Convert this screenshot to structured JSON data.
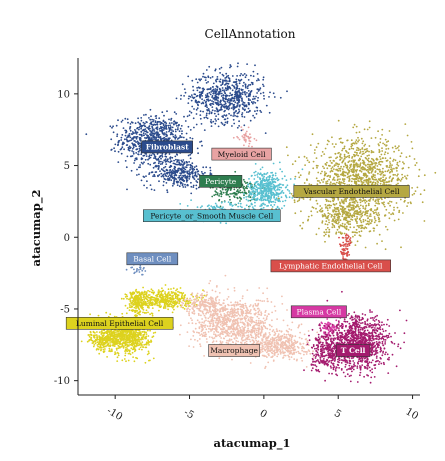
{
  "chart_data": {
    "type": "scatter",
    "title": "CellAnnotation",
    "xlabel": "atacumap_1",
    "ylabel": "atacumap_2",
    "xlim": [
      -12.5,
      10.5
    ],
    "ylim": [
      -11,
      12.5
    ],
    "x_ticks": [
      -10,
      -5,
      0,
      5,
      10
    ],
    "x_tick_labels": [
      "-10",
      "-5",
      "0",
      "5",
      "10"
    ],
    "y_ticks": [
      -10,
      -5,
      0,
      5,
      10
    ],
    "y_tick_labels": [
      "-10",
      "-5",
      "0",
      "5",
      "10"
    ],
    "grid": false,
    "legend": "none",
    "series": [
      {
        "name": "Fibroblast",
        "color": "#2b4b8c",
        "label_at": [
          -6.5,
          6.3
        ],
        "blobs": [
          {
            "c": [
              -7.5,
              6.8
            ],
            "r": [
              2.0,
              1.5
            ],
            "n": 700
          },
          {
            "c": [
              -5.8,
              4.5
            ],
            "r": [
              1.8,
              1.0
            ],
            "n": 350
          },
          {
            "c": [
              -2.5,
              9.8
            ],
            "r": [
              2.3,
              1.6
            ],
            "n": 650
          }
        ]
      },
      {
        "name": "Myeloid Cell",
        "color": "#e8a3a3",
        "label_at": [
          -1.5,
          5.8
        ],
        "blobs": [
          {
            "c": [
              -1.2,
              7.0
            ],
            "r": [
              0.5,
              0.5
            ],
            "n": 40
          }
        ]
      },
      {
        "name": "Pericyte",
        "color": "#2e7d4f",
        "label_at": [
          -2.9,
          3.9
        ],
        "blobs": [
          {
            "c": [
              -2.0,
              3.3
            ],
            "r": [
              1.4,
              0.8
            ],
            "n": 180
          }
        ]
      },
      {
        "name": "Pericyte_or_Smooth Muscle Cell",
        "color": "#58c0d0",
        "label_at": [
          -3.5,
          1.5
        ],
        "blobs": [
          {
            "c": [
              0.2,
              3.3
            ],
            "r": [
              1.2,
              1.2
            ],
            "n": 450
          },
          {
            "c": [
              -3.0,
              1.8
            ],
            "r": [
              2.2,
              0.6
            ],
            "n": 150
          }
        ]
      },
      {
        "name": "Vascular Endothelial Cell",
        "color": "#b5a842",
        "label_at": [
          5.9,
          3.2
        ],
        "blobs": [
          {
            "c": [
              6.5,
              4.0
            ],
            "r": [
              3.0,
              2.5
            ],
            "n": 1200
          },
          {
            "c": [
              5.5,
              1.5
            ],
            "r": [
              2.0,
              1.3
            ],
            "n": 350
          },
          {
            "c": [
              3.0,
              3.0
            ],
            "r": [
              1.0,
              0.4
            ],
            "n": 60
          }
        ]
      },
      {
        "name": "Lymphatic Endothelial Cell",
        "color": "#d94f4b",
        "label_at": [
          4.5,
          -2.0
        ],
        "blobs": [
          {
            "c": [
              5.5,
              -0.8
            ],
            "r": [
              0.4,
              1.0
            ],
            "n": 80
          }
        ]
      },
      {
        "name": "Basal Cell",
        "color": "#6f8fc0",
        "label_at": [
          -7.5,
          -1.5
        ],
        "blobs": [
          {
            "c": [
              -8.5,
              -2.2
            ],
            "r": [
              0.5,
              0.4
            ],
            "n": 25
          }
        ]
      },
      {
        "name": "Luminal Epithelial Cell",
        "color": "#ddd21e",
        "label_at": [
          -9.7,
          -6.0
        ],
        "blobs": [
          {
            "c": [
              -9.2,
              -6.8
            ],
            "r": [
              1.4,
              1.2
            ],
            "n": 800
          },
          {
            "c": [
              -6.8,
              -4.3
            ],
            "r": [
              1.8,
              0.6
            ],
            "n": 400
          },
          {
            "c": [
              -8.5,
              -4.5
            ],
            "r": [
              0.6,
              0.8
            ],
            "n": 200
          },
          {
            "c": [
              -10.8,
              -7.2
            ],
            "r": [
              0.9,
              0.6
            ],
            "n": 200
          }
        ]
      },
      {
        "name": "Macrophage",
        "color": "#f0c2b2",
        "label_at": [
          -2.0,
          -7.9
        ],
        "blobs": [
          {
            "c": [
              -2.0,
              -6.0
            ],
            "r": [
              2.5,
              1.6
            ],
            "n": 900
          },
          {
            "c": [
              1.0,
              -7.5
            ],
            "r": [
              1.8,
              0.9
            ],
            "n": 450
          },
          {
            "c": [
              -4.0,
              -4.6
            ],
            "r": [
              1.2,
              0.6
            ],
            "n": 150
          }
        ]
      },
      {
        "name": "Plasma Cell",
        "color": "#d639a3",
        "label_at": [
          3.7,
          -5.2
        ],
        "blobs": [
          {
            "c": [
              4.5,
              -6.3
            ],
            "r": [
              0.7,
              0.5
            ],
            "n": 80
          }
        ]
      },
      {
        "name": "T Cell",
        "color": "#a41b6e",
        "label_at": [
          6.0,
          -7.9
        ],
        "blobs": [
          {
            "c": [
              6.4,
              -7.4
            ],
            "r": [
              1.8,
              1.7
            ],
            "n": 1000
          },
          {
            "c": [
              4.3,
              -8.0
            ],
            "r": [
              1.0,
              1.2
            ],
            "n": 300
          }
        ]
      }
    ]
  }
}
